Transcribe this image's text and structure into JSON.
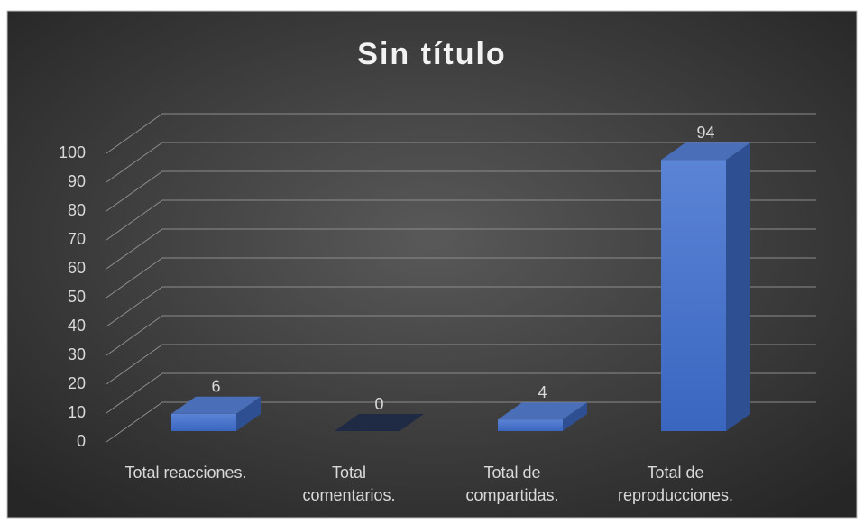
{
  "chart_data": {
    "type": "bar3d",
    "title": "Sin título",
    "categories": [
      "Total reacciones.",
      "Total\ncomentarios.",
      "Total de\ncompartidas.",
      "Total de\nreproducciones."
    ],
    "values": [
      6,
      0,
      4,
      94
    ],
    "color": "#4472c4",
    "ylim": [
      0,
      100
    ],
    "yticks": [
      0,
      10,
      20,
      30,
      40,
      50,
      60,
      70,
      80,
      90,
      100
    ],
    "grid": true
  }
}
